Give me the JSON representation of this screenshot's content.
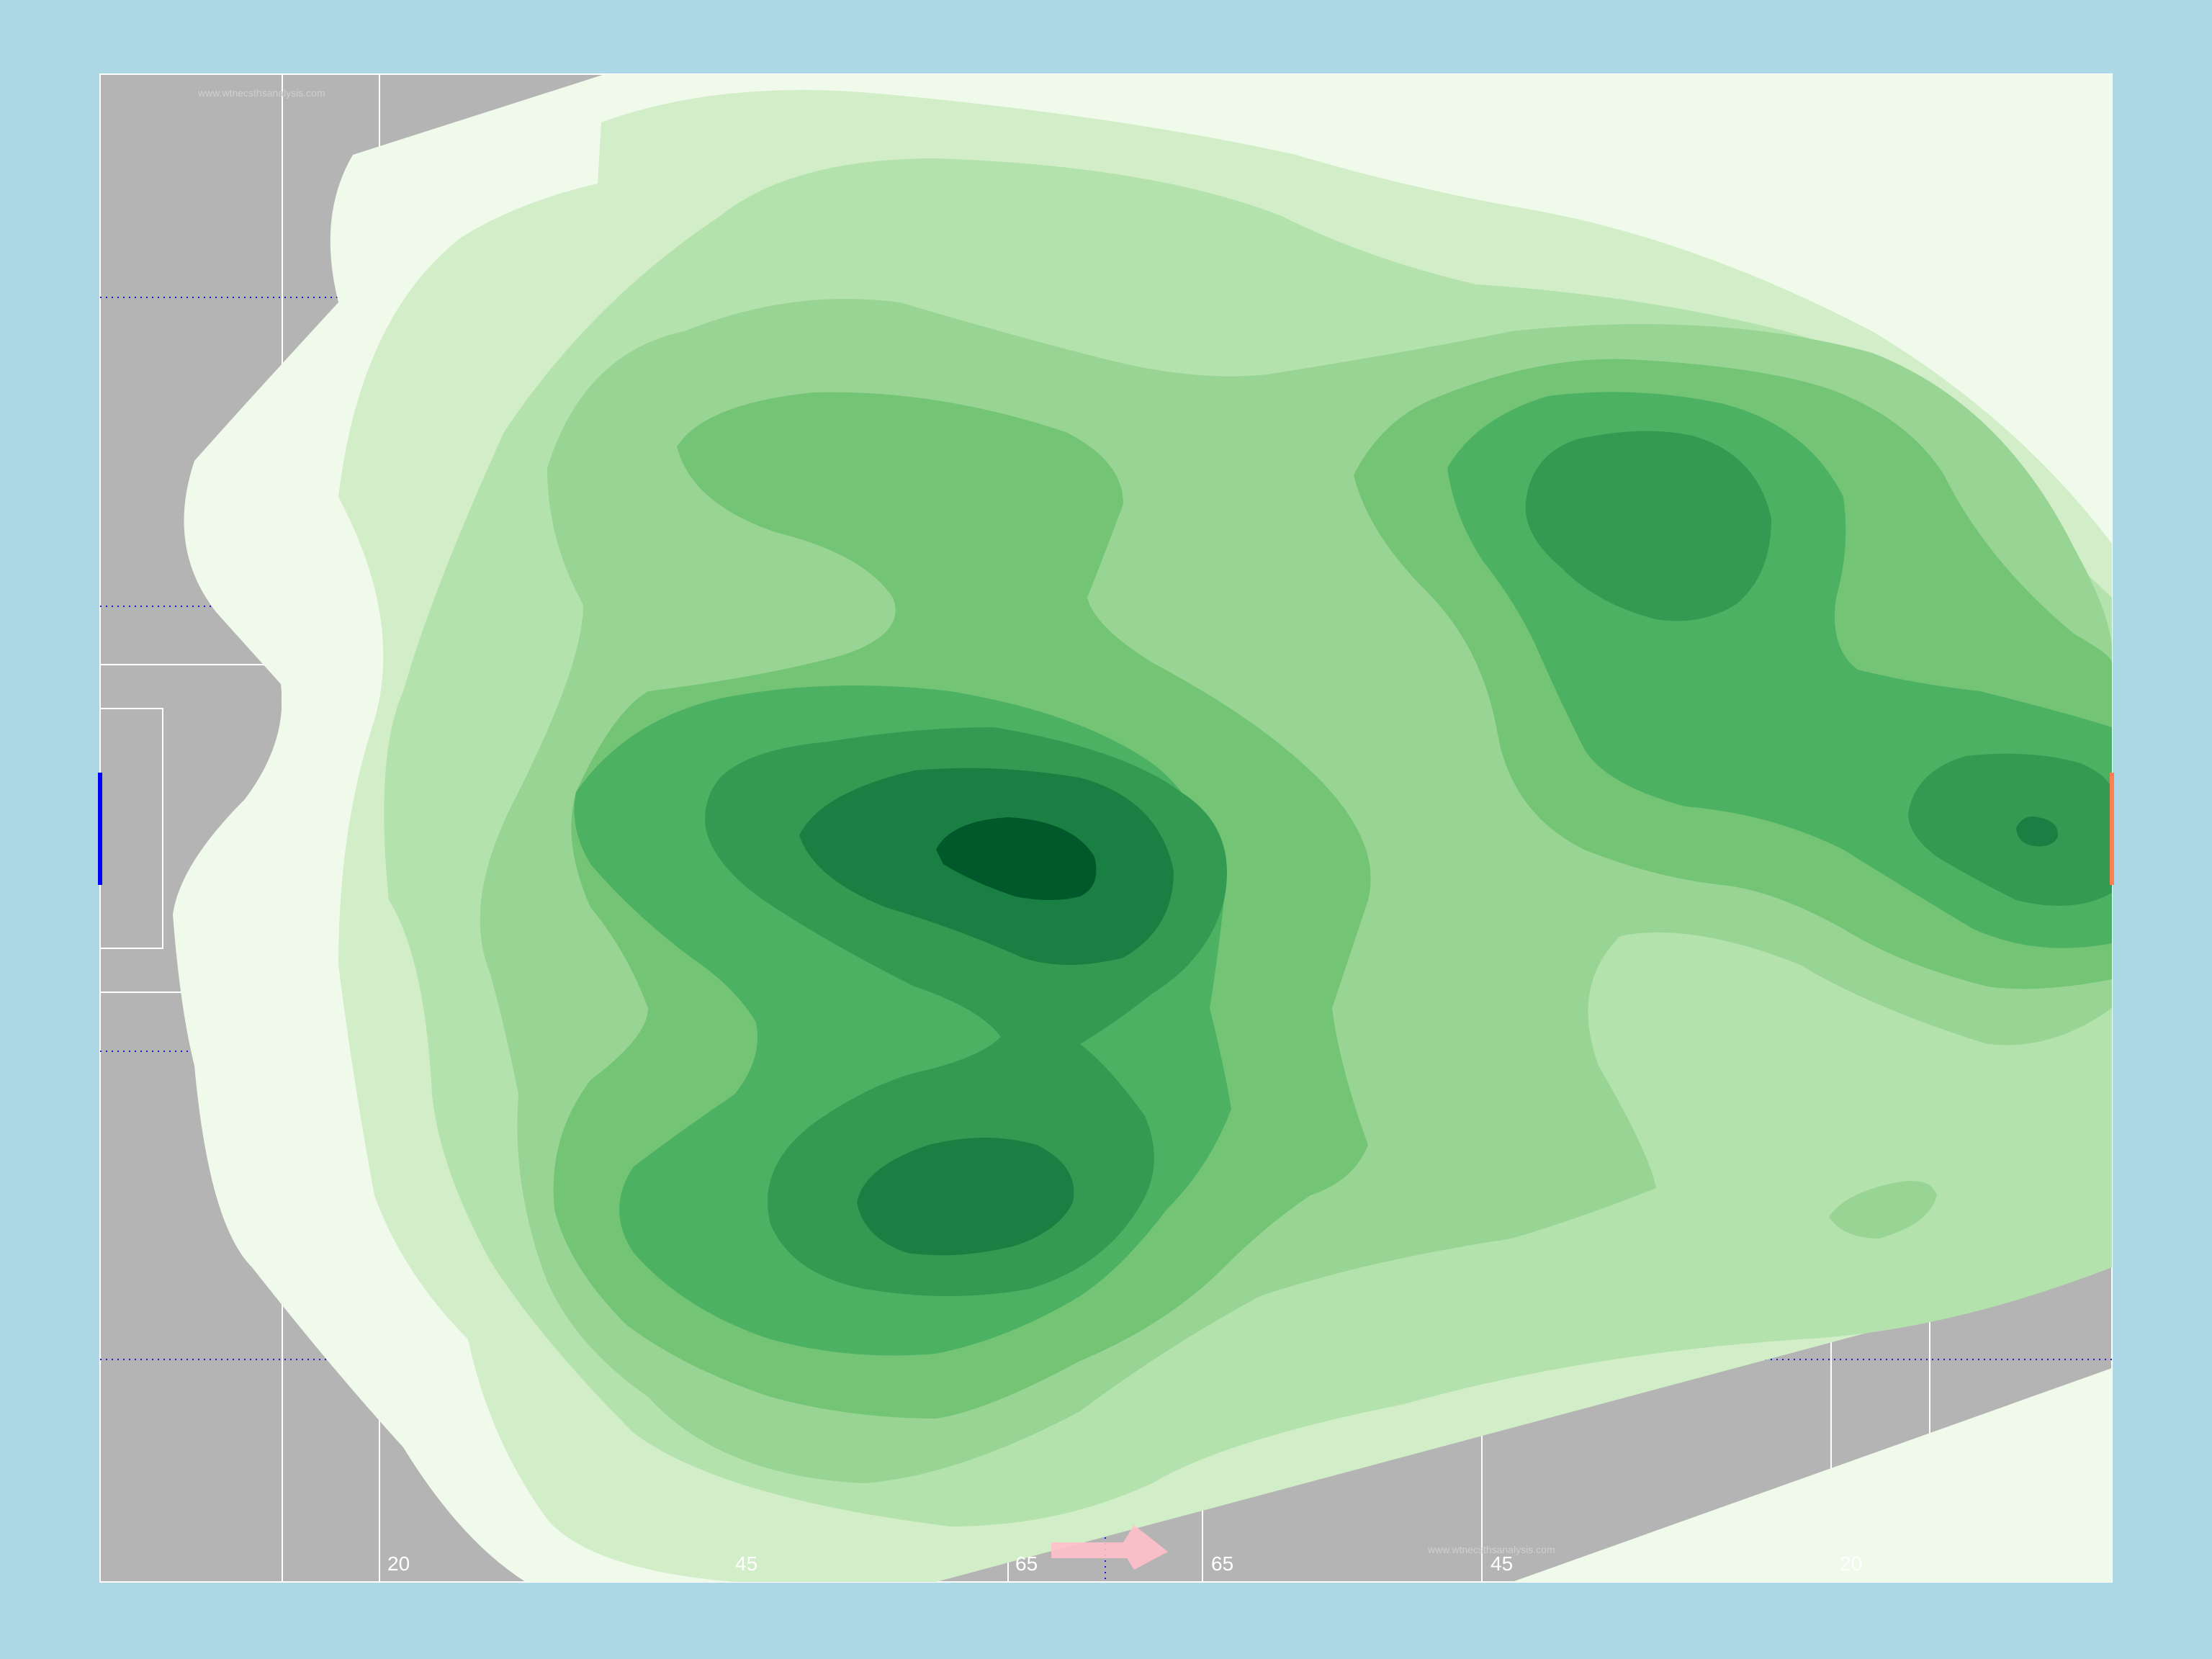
{
  "chart_data": {
    "type": "heatmap",
    "title": "",
    "subtitle": "",
    "xlabel": "",
    "ylabel": "",
    "grid": true,
    "legend": false,
    "colormap": "Greens",
    "levels": 9,
    "background_color": "#add8e6",
    "pitch_color": "#b4b4b4",
    "line_color": "#ffffff",
    "zone_line_color": "#1a1ad6",
    "goal_left_color": "#0000ff",
    "goal_right_color": "#ff7f50",
    "arrow_color": "#ffc0cb",
    "x_tick_labels": [
      "20",
      "45",
      "65",
      "65",
      "45",
      "20"
    ],
    "watermark": "www.wtnecsthsanalysis.com",
    "density_peaks": [
      {
        "name": "central-left hotspot",
        "level": 9
      },
      {
        "name": "bottom-center hotspot",
        "level": 8
      },
      {
        "name": "upper-right hotspot",
        "level": 7
      },
      {
        "name": "right-edge hotspot",
        "level": 8
      }
    ]
  }
}
